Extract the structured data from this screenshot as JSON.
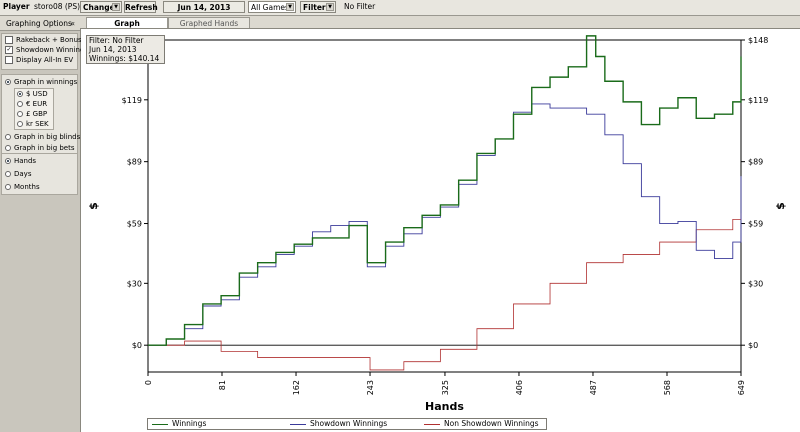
{
  "toolbar": {
    "player_label": "Player",
    "player_name": "storo08 (PS)",
    "change_label": "Change",
    "refresh_label": "Refresh",
    "date_label": "Jun 14, 2013",
    "games_value": "All Games",
    "filter_label": "Filter",
    "filter_status": "No Filter"
  },
  "panel": {
    "header": "Graphing Options",
    "collapse_glyph": "«",
    "checkboxes": [
      {
        "label": "Rakeback + Bonuses",
        "checked": false
      },
      {
        "label": "Showdown Winnings",
        "checked": true
      },
      {
        "label": "Display All-In EV",
        "checked": false
      }
    ],
    "graph_in_winnings": "Graph in winnings",
    "currencies": [
      {
        "label": "$ USD",
        "selected": true
      },
      {
        "label": "€ EUR",
        "selected": false
      },
      {
        "label": "£ GBP",
        "selected": false
      },
      {
        "label": "kr SEK",
        "selected": false
      }
    ],
    "graph_in_big_blinds": "Graph in big blinds",
    "graph_in_big_bets": "Graph in big bets",
    "x_modes": [
      {
        "label": "Hands",
        "selected": true
      },
      {
        "label": "Days",
        "selected": false
      },
      {
        "label": "Months",
        "selected": false
      }
    ]
  },
  "tabs": [
    {
      "label": "Graph",
      "active": true
    },
    {
      "label": "Graphed Hands",
      "active": false
    }
  ],
  "filter_box": {
    "line1": "Filter: No Filter",
    "line2": "Jun 14, 2013",
    "line3": "Winnings: $140.14"
  },
  "chart_data": {
    "type": "line",
    "xlabel": "Hands",
    "ylabel": "$",
    "x_ticks": [
      0,
      81,
      162,
      243,
      325,
      406,
      487,
      568,
      649
    ],
    "y_ticks": [
      0,
      30,
      59,
      89,
      119,
      148
    ],
    "y_tick_labels": [
      "$0",
      "$30",
      "$59",
      "$89",
      "$119",
      "$148"
    ],
    "xlim": [
      0,
      649
    ],
    "ylim": [
      -13,
      148
    ],
    "grid": false,
    "legend_position": "bottom",
    "colors": {
      "winnings": "#1a6b1a",
      "showdown": "#3a3a9a",
      "non_showdown": "#b03030"
    },
    "series": [
      {
        "name": "Winnings",
        "x": [
          0,
          20,
          40,
          60,
          80,
          100,
          120,
          140,
          160,
          180,
          200,
          220,
          240,
          260,
          280,
          300,
          320,
          340,
          360,
          380,
          400,
          420,
          440,
          460,
          480,
          490,
          500,
          520,
          540,
          560,
          580,
          600,
          620,
          640,
          649
        ],
        "y": [
          0,
          3,
          10,
          20,
          24,
          35,
          40,
          45,
          49,
          52,
          52,
          58,
          40,
          50,
          57,
          63,
          68,
          80,
          93,
          100,
          112,
          125,
          130,
          135,
          150,
          140,
          128,
          118,
          107,
          115,
          120,
          110,
          112,
          118,
          140
        ]
      },
      {
        "name": "Showdown Winnings",
        "x": [
          0,
          20,
          40,
          60,
          80,
          100,
          120,
          140,
          160,
          180,
          200,
          220,
          240,
          260,
          280,
          300,
          320,
          340,
          360,
          380,
          400,
          420,
          440,
          460,
          480,
          500,
          520,
          540,
          560,
          580,
          600,
          620,
          640,
          649
        ],
        "y": [
          0,
          3,
          8,
          19,
          22,
          33,
          38,
          44,
          48,
          55,
          58,
          60,
          38,
          48,
          54,
          62,
          67,
          78,
          92,
          100,
          113,
          117,
          115,
          115,
          112,
          102,
          88,
          72,
          59,
          60,
          46,
          42,
          50,
          82
        ]
      },
      {
        "name": "Non Showdown Winnings",
        "x": [
          0,
          40,
          80,
          120,
          160,
          200,
          243,
          280,
          320,
          360,
          400,
          440,
          480,
          520,
          560,
          600,
          640,
          649
        ],
        "y": [
          0,
          2,
          -3,
          -6,
          -6,
          -6,
          -12,
          -8,
          -2,
          8,
          20,
          30,
          40,
          44,
          50,
          56,
          61,
          64
        ]
      }
    ]
  }
}
